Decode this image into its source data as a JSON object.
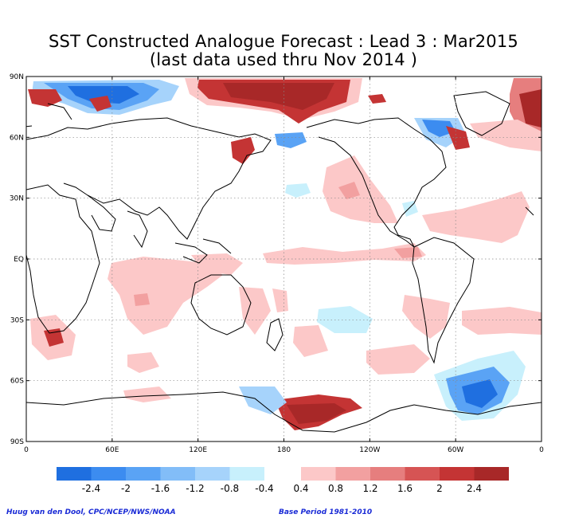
{
  "title": "SST Constructed Analogue Forecast : Lead 3 : Mar2015",
  "subtitle": "(last data used thru Nov 2014 )",
  "axes": {
    "lat_labels": [
      "90N",
      "60N",
      "30N",
      "EQ",
      "30S",
      "60S",
      "90S"
    ],
    "lon_labels": [
      "0",
      "60E",
      "120E",
      "180",
      "120W",
      "60W",
      "0"
    ]
  },
  "colorbar": {
    "negative": {
      "colors": [
        "#1f6fe0",
        "#3c8cf0",
        "#5aa3f5",
        "#82bdf8",
        "#a6d3fb",
        "#c8f0fc"
      ],
      "labels": [
        "-2.4",
        "-2",
        "-1.6",
        "-1.2",
        "-0.8",
        "-0.4"
      ]
    },
    "positive": {
      "colors": [
        "#fcc8c8",
        "#f2a0a0",
        "#e67e7e",
        "#d65454",
        "#c43434",
        "#a82828"
      ],
      "labels": [
        "0.4",
        "0.8",
        "1.2",
        "1.6",
        "2",
        "2.4"
      ]
    }
  },
  "footer": {
    "credit": "Huug van den Dool, CPC/NCEP/NWS/NOAA",
    "base_period": "Base Period 1981-2010"
  }
}
